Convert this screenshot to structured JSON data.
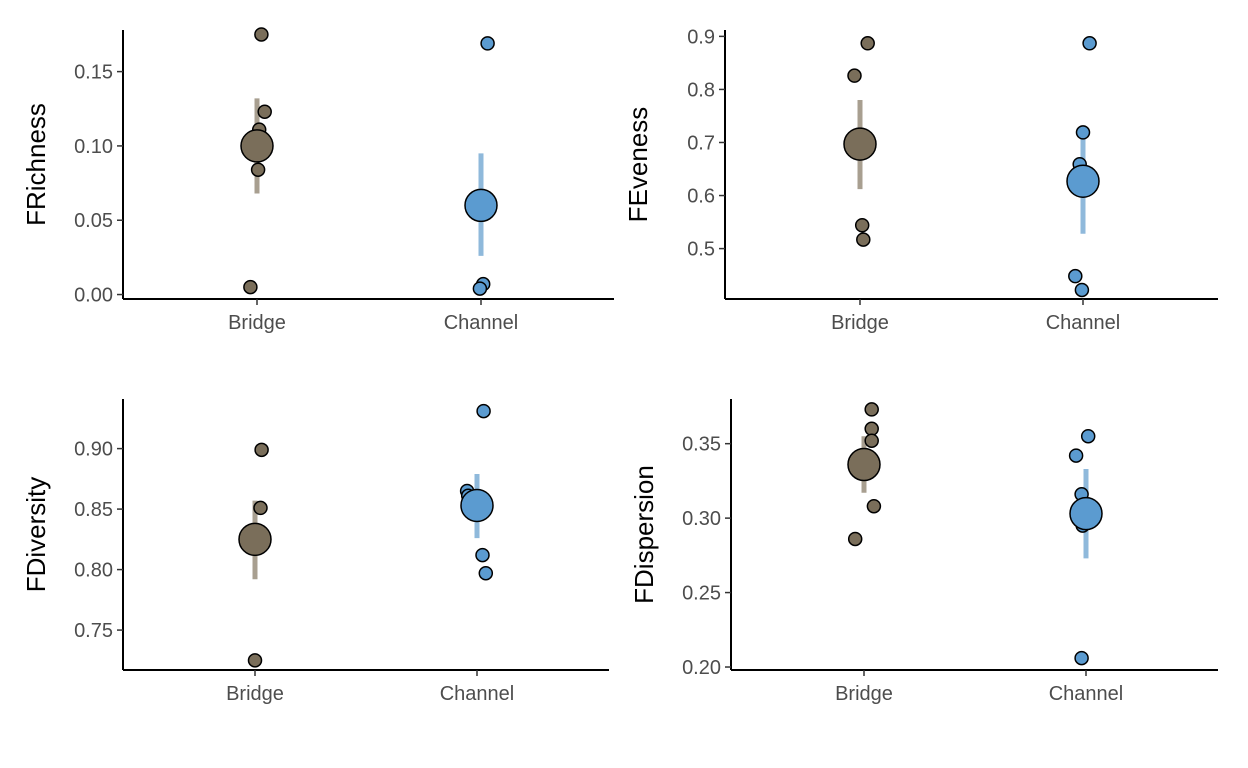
{
  "chart_data": [
    {
      "type": "scatter",
      "ylabel": "FRichness",
      "categories": [
        "Bridge",
        "Channel"
      ],
      "ylim": [
        -0.003,
        0.178
      ],
      "yticks": [
        0.0,
        0.05,
        0.1,
        0.15
      ],
      "ytick_labels": [
        "0.00",
        "0.05",
        "0.10",
        "0.15"
      ],
      "grid": false,
      "groups": [
        {
          "category": "Bridge",
          "color": "#7a6e5a",
          "bar_color": "#a89f90",
          "points": [
            {
              "offset": 0.04,
              "y": 0.175
            },
            {
              "offset": 0.07,
              "y": 0.123
            },
            {
              "offset": 0.02,
              "y": 0.111
            },
            {
              "offset": 0.01,
              "y": 0.084
            },
            {
              "offset": -0.06,
              "y": 0.005
            }
          ],
          "mean": 0.1,
          "ci": [
            0.068,
            0.132
          ]
        },
        {
          "category": "Channel",
          "color": "#5b9bd0",
          "bar_color": "#8fb9db",
          "points": [
            {
              "offset": 0.06,
              "y": 0.169
            },
            {
              "offset": 0.07,
              "y": 0.063
            },
            {
              "offset": 0.03,
              "y": 0.057
            },
            {
              "offset": 0.02,
              "y": 0.007
            },
            {
              "offset": -0.01,
              "y": 0.004
            }
          ],
          "mean": 0.06,
          "ci": [
            0.026,
            0.095
          ]
        }
      ]
    },
    {
      "type": "scatter",
      "ylabel": "FEveness",
      "categories": [
        "Bridge",
        "Channel"
      ],
      "ylim": [
        0.405,
        0.912
      ],
      "yticks": [
        0.5,
        0.6,
        0.7,
        0.8,
        0.9
      ],
      "ytick_labels": [
        "0.5",
        "0.6",
        "0.7",
        "0.8",
        "0.9"
      ],
      "grid": false,
      "groups": [
        {
          "category": "Bridge",
          "color": "#7a6e5a",
          "bar_color": "#a89f90",
          "points": [
            {
              "offset": 0.07,
              "y": 0.887
            },
            {
              "offset": -0.05,
              "y": 0.826
            },
            {
              "offset": 0.06,
              "y": 0.707
            },
            {
              "offset": 0.02,
              "y": 0.544
            },
            {
              "offset": 0.03,
              "y": 0.517
            }
          ],
          "mean": 0.697,
          "ci": [
            0.612,
            0.78
          ]
        },
        {
          "category": "Channel",
          "color": "#5b9bd0",
          "bar_color": "#8fb9db",
          "points": [
            {
              "offset": 0.06,
              "y": 0.887
            },
            {
              "offset": 0.0,
              "y": 0.719
            },
            {
              "offset": -0.03,
              "y": 0.659
            },
            {
              "offset": -0.07,
              "y": 0.448
            },
            {
              "offset": -0.01,
              "y": 0.422
            }
          ],
          "mean": 0.627,
          "ci": [
            0.528,
            0.716
          ]
        }
      ]
    },
    {
      "type": "scatter",
      "ylabel": "FDiversity",
      "categories": [
        "Bridge",
        "Channel"
      ],
      "ylim": [
        0.717,
        0.941
      ],
      "yticks": [
        0.75,
        0.8,
        0.85,
        0.9
      ],
      "ytick_labels": [
        "0.75",
        "0.80",
        "0.85",
        "0.90"
      ],
      "grid": false,
      "groups": [
        {
          "category": "Bridge",
          "color": "#7a6e5a",
          "bar_color": "#a89f90",
          "points": [
            {
              "offset": 0.06,
              "y": 0.899
            },
            {
              "offset": 0.05,
              "y": 0.851
            },
            {
              "offset": 0.03,
              "y": 0.83
            },
            {
              "offset": -0.04,
              "y": 0.819
            },
            {
              "offset": 0.0,
              "y": 0.725
            }
          ],
          "mean": 0.825,
          "ci": [
            0.792,
            0.857
          ]
        },
        {
          "category": "Channel",
          "color": "#5b9bd0",
          "bar_color": "#8fb9db",
          "points": [
            {
              "offset": 0.06,
              "y": 0.931
            },
            {
              "offset": -0.09,
              "y": 0.865
            },
            {
              "offset": -0.08,
              "y": 0.861
            },
            {
              "offset": 0.05,
              "y": 0.812
            },
            {
              "offset": 0.08,
              "y": 0.797
            }
          ],
          "mean": 0.853,
          "ci": [
            0.826,
            0.879
          ]
        }
      ]
    },
    {
      "type": "scatter",
      "ylabel": "FDispersion",
      "categories": [
        "Bridge",
        "Channel"
      ],
      "ylim": [
        0.198,
        0.38
      ],
      "yticks": [
        0.2,
        0.25,
        0.3,
        0.35
      ],
      "ytick_labels": [
        "0.20",
        "0.25",
        "0.30",
        "0.35"
      ],
      "grid": false,
      "groups": [
        {
          "category": "Bridge",
          "color": "#7a6e5a",
          "bar_color": "#a89f90",
          "points": [
            {
              "offset": 0.07,
              "y": 0.373
            },
            {
              "offset": 0.07,
              "y": 0.36
            },
            {
              "offset": 0.07,
              "y": 0.352
            },
            {
              "offset": 0.09,
              "y": 0.308
            },
            {
              "offset": -0.08,
              "y": 0.286
            }
          ],
          "mean": 0.336,
          "ci": [
            0.317,
            0.355
          ]
        },
        {
          "category": "Channel",
          "color": "#5b9bd0",
          "bar_color": "#8fb9db",
          "points": [
            {
              "offset": 0.02,
              "y": 0.355
            },
            {
              "offset": -0.09,
              "y": 0.342
            },
            {
              "offset": -0.04,
              "y": 0.316
            },
            {
              "offset": -0.03,
              "y": 0.295
            },
            {
              "offset": -0.04,
              "y": 0.206
            }
          ],
          "mean": 0.303,
          "ci": [
            0.273,
            0.333
          ]
        }
      ]
    }
  ]
}
